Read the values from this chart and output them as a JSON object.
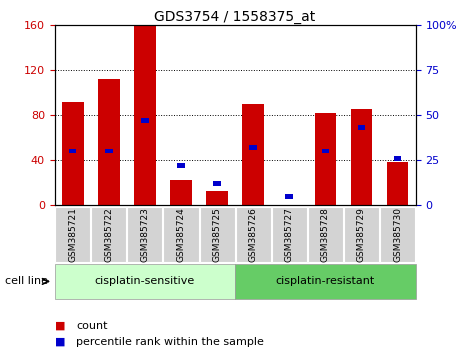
{
  "title": "GDS3754 / 1558375_at",
  "samples": [
    "GSM385721",
    "GSM385722",
    "GSM385723",
    "GSM385724",
    "GSM385725",
    "GSM385726",
    "GSM385727",
    "GSM385728",
    "GSM385729",
    "GSM385730"
  ],
  "count_values": [
    92,
    112,
    160,
    22,
    13,
    90,
    0,
    82,
    85,
    38
  ],
  "percentile_values": [
    30,
    30,
    47,
    22,
    12,
    32,
    5,
    30,
    43,
    26
  ],
  "ylim_left": [
    0,
    160
  ],
  "ylim_right": [
    0,
    100
  ],
  "yticks_left": [
    0,
    40,
    80,
    120,
    160
  ],
  "yticks_right": [
    0,
    25,
    50,
    75,
    100
  ],
  "bar_color": "#cc0000",
  "percentile_color": "#0000cc",
  "group1_label": "cisplatin-sensitive",
  "group2_label": "cisplatin-resistant",
  "group1_color": "#ccffcc",
  "group2_color": "#66cc66",
  "cell_line_label": "cell line",
  "legend_count": "count",
  "legend_percentile": "percentile rank within the sample",
  "left_color": "#cc0000",
  "right_color": "#0000cc",
  "tick_box_color": "#d3d3d3"
}
